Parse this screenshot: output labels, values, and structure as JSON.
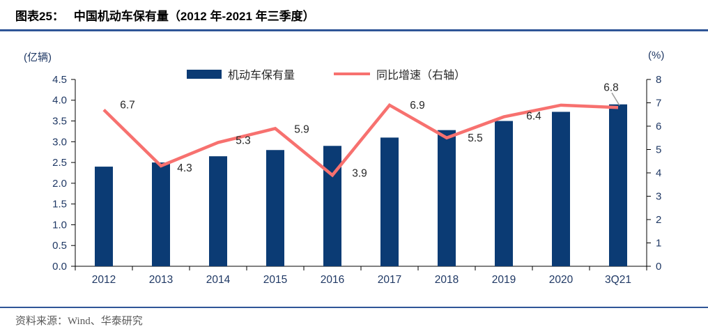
{
  "figure": {
    "title_prefix": "图表25：",
    "title": "中国机动车保有量（2012 年-2021 年三季度）",
    "source": "资料来源：Wind、华泰研究"
  },
  "chart_data": {
    "type": "bar+line combo",
    "categories": [
      "2012",
      "2013",
      "2014",
      "2015",
      "2016",
      "2017",
      "2018",
      "2019",
      "2020",
      "3Q21"
    ],
    "series": [
      {
        "name": "机动车保有量",
        "type": "bar",
        "axis": "left",
        "color": "#0B3B74",
        "values": [
          2.4,
          2.5,
          2.65,
          2.8,
          2.9,
          3.1,
          3.28,
          3.5,
          3.72,
          3.9
        ]
      },
      {
        "name": "同比增速（右轴）",
        "type": "line",
        "axis": "right",
        "color": "#F7716F",
        "values": [
          6.7,
          4.3,
          5.3,
          5.9,
          3.9,
          6.9,
          5.5,
          6.4,
          6.9,
          6.8
        ],
        "point_labels": [
          "6.7",
          "4.3",
          "5.3",
          "5.9",
          "3.9",
          "6.9",
          "5.5",
          "6.4",
          "",
          "6.8"
        ]
      }
    ],
    "left_axis": {
      "unit": "(亿辆)",
      "min": 0.0,
      "max": 4.5,
      "step": 0.5,
      "tick_labels": [
        "4.5",
        "4.0",
        "3.5",
        "3.0",
        "2.5",
        "2.0",
        "1.5",
        "1.0",
        "0.5",
        "0.0"
      ]
    },
    "right_axis": {
      "unit": "(%)",
      "min": 0,
      "max": 8,
      "step": 1,
      "tick_labels": [
        "8",
        "7",
        "6",
        "5",
        "4",
        "3",
        "2",
        "1",
        "0"
      ]
    },
    "legend_position": "top-center",
    "grid": "off",
    "colors": {
      "axis_label": "#1F3864",
      "axis_line": "#000000",
      "data_label": "#262626",
      "rule": "#2F5597",
      "leader_line": "#9E9E9E"
    }
  }
}
